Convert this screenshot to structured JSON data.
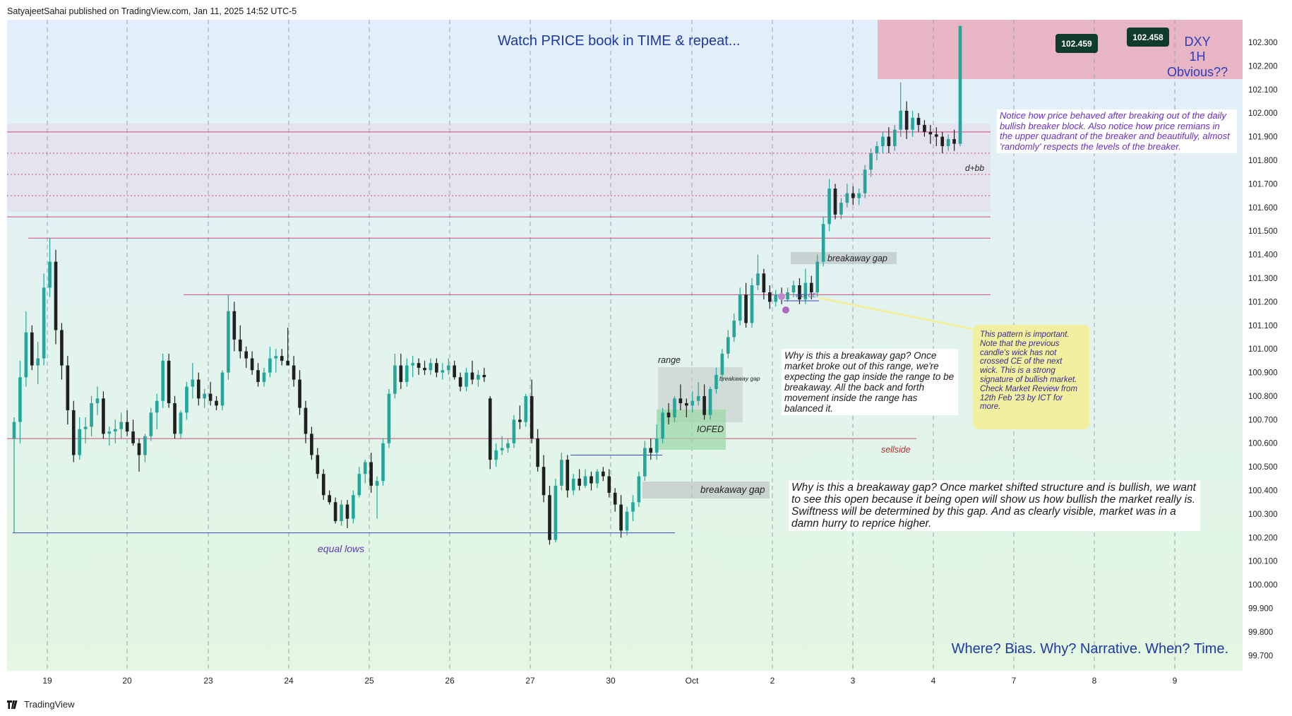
{
  "header": {
    "publisher_text": "SatyajeetSahai published on TradingView.com, Jan 11, 2025 14:52 UTC-5"
  },
  "footer": {
    "brand": "TradingView"
  },
  "colors": {
    "bull": "#26a69a",
    "bear": "#1f1f1f",
    "zone_line": "#d04a78",
    "equal_lows_line": "#3a4ab5",
    "premium_zone": "#e9a6b6",
    "note_purple": "#6a2fc2",
    "title_blue": "#1e3a9e",
    "yellow_note": "#f1f0a0"
  },
  "chart_data": {
    "type": "candlestick",
    "symbol": "DXY",
    "timeframe": "1H",
    "title": "Watch PRICE book in TIME & repeat...",
    "ylim": [
      99.65,
      102.36
    ],
    "y_ticks": [
      "102.300",
      "102.200",
      "102.100",
      "102.000",
      "101.900",
      "101.800",
      "101.700",
      "101.600",
      "101.500",
      "101.400",
      "101.300",
      "101.200",
      "101.100",
      "101.000",
      "100.900",
      "100.800",
      "100.700",
      "100.600",
      "100.500",
      "100.400",
      "100.300",
      "100.200",
      "100.100",
      "100.000",
      "99.900",
      "99.800",
      "99.700"
    ],
    "x_ticks": [
      "19",
      "20",
      "23",
      "24",
      "25",
      "26",
      "27",
      "30",
      "Oct",
      "2",
      "3",
      "4",
      "7",
      "8",
      "9"
    ],
    "price_labels": [
      "102.459",
      "102.458"
    ],
    "candles_ohlc": [
      [
        100.62,
        100.71,
        100.22,
        100.69
      ],
      [
        100.69,
        100.95,
        100.6,
        100.88
      ],
      [
        100.88,
        101.16,
        100.84,
        101.07
      ],
      [
        101.07,
        101.1,
        100.91,
        100.93
      ],
      [
        100.93,
        101.03,
        100.85,
        100.96
      ],
      [
        100.96,
        101.32,
        100.93,
        101.26
      ],
      [
        101.26,
        101.47,
        101.22,
        101.37
      ],
      [
        101.37,
        101.42,
        101.02,
        101.08
      ],
      [
        101.08,
        101.11,
        100.87,
        100.93
      ],
      [
        100.93,
        100.97,
        100.68,
        100.74
      ],
      [
        100.74,
        100.78,
        100.52,
        100.55
      ],
      [
        100.55,
        100.71,
        100.53,
        100.66
      ],
      [
        100.66,
        100.71,
        100.6,
        100.67
      ],
      [
        100.67,
        100.8,
        100.63,
        100.77
      ],
      [
        100.77,
        100.84,
        100.72,
        100.79
      ],
      [
        100.79,
        100.82,
        100.62,
        100.64
      ],
      [
        100.64,
        100.67,
        100.59,
        100.65
      ],
      [
        100.65,
        100.7,
        100.6,
        100.66
      ],
      [
        100.66,
        100.73,
        100.62,
        100.69
      ],
      [
        100.69,
        100.74,
        100.63,
        100.65
      ],
      [
        100.65,
        100.7,
        100.59,
        100.6
      ],
      [
        100.6,
        100.62,
        100.48,
        100.55
      ],
      [
        100.55,
        100.64,
        100.52,
        100.63
      ],
      [
        100.63,
        100.75,
        100.61,
        100.73
      ],
      [
        100.73,
        100.81,
        100.66,
        100.78
      ],
      [
        100.78,
        100.98,
        100.75,
        100.95
      ],
      [
        100.95,
        100.98,
        100.75,
        100.77
      ],
      [
        100.77,
        100.8,
        100.62,
        100.64
      ],
      [
        100.64,
        100.74,
        100.62,
        100.73
      ],
      [
        100.73,
        100.86,
        100.7,
        100.84
      ],
      [
        100.84,
        100.94,
        100.79,
        100.87
      ],
      [
        100.87,
        100.9,
        100.76,
        100.79
      ],
      [
        100.79,
        100.83,
        100.75,
        100.81
      ],
      [
        100.81,
        100.86,
        100.76,
        100.78
      ],
      [
        100.78,
        100.8,
        100.74,
        100.76
      ],
      [
        100.76,
        100.91,
        100.74,
        100.9
      ],
      [
        100.9,
        101.23,
        100.87,
        101.16
      ],
      [
        101.16,
        101.2,
        100.99,
        101.04
      ],
      [
        101.04,
        101.1,
        100.96,
        100.99
      ],
      [
        100.99,
        101.01,
        100.92,
        100.96
      ],
      [
        100.96,
        100.99,
        100.89,
        100.91
      ],
      [
        100.91,
        100.94,
        100.84,
        100.86
      ],
      [
        100.86,
        100.92,
        100.84,
        100.9
      ],
      [
        100.9,
        101.01,
        100.88,
        100.96
      ],
      [
        100.96,
        101.0,
        100.9,
        100.97
      ],
      [
        100.97,
        101.0,
        100.93,
        100.95
      ],
      [
        100.95,
        101.09,
        100.94,
        100.93
      ],
      [
        100.93,
        100.97,
        100.84,
        100.87
      ],
      [
        100.87,
        100.91,
        100.72,
        100.75
      ],
      [
        100.75,
        100.78,
        100.6,
        100.64
      ],
      [
        100.64,
        100.67,
        100.53,
        100.55
      ],
      [
        100.55,
        100.58,
        100.45,
        100.47
      ],
      [
        100.47,
        100.49,
        100.36,
        100.38
      ],
      [
        100.38,
        100.4,
        100.34,
        100.35
      ],
      [
        100.35,
        100.37,
        100.26,
        100.27
      ],
      [
        100.27,
        100.36,
        100.25,
        100.34
      ],
      [
        100.34,
        100.36,
        100.24,
        100.28
      ],
      [
        100.28,
        100.4,
        100.26,
        100.38
      ],
      [
        100.38,
        100.5,
        100.37,
        100.47
      ],
      [
        100.47,
        100.53,
        100.43,
        100.52
      ],
      [
        100.52,
        100.56,
        100.39,
        100.42
      ],
      [
        100.42,
        100.46,
        100.28,
        100.44
      ],
      [
        100.44,
        100.62,
        100.42,
        100.6
      ],
      [
        100.6,
        100.83,
        100.58,
        100.81
      ],
      [
        100.81,
        100.98,
        100.79,
        100.93
      ],
      [
        100.93,
        100.98,
        100.83,
        100.86
      ],
      [
        100.86,
        100.96,
        100.84,
        100.93
      ],
      [
        100.93,
        100.97,
        100.88,
        100.94
      ],
      [
        100.94,
        100.96,
        100.89,
        100.92
      ],
      [
        100.92,
        100.95,
        100.89,
        100.91
      ],
      [
        100.91,
        100.96,
        100.89,
        100.94
      ],
      [
        100.94,
        100.96,
        100.88,
        100.9
      ],
      [
        100.9,
        100.94,
        100.87,
        100.91
      ],
      [
        100.91,
        100.96,
        100.89,
        100.93
      ],
      [
        100.93,
        100.95,
        100.87,
        100.88
      ],
      [
        100.88,
        100.9,
        100.82,
        100.84
      ],
      [
        100.84,
        100.92,
        100.82,
        100.9
      ],
      [
        100.9,
        100.95,
        100.85,
        100.87
      ],
      [
        100.87,
        100.91,
        100.84,
        100.89
      ],
      [
        100.89,
        100.92,
        100.86,
        100.88
      ],
      [
        100.79,
        100.8,
        100.49,
        100.53
      ],
      [
        100.53,
        100.6,
        100.5,
        100.57
      ],
      [
        100.57,
        100.63,
        100.55,
        100.58
      ],
      [
        100.58,
        100.62,
        100.56,
        100.6
      ],
      [
        100.6,
        100.72,
        100.58,
        100.7
      ],
      [
        100.7,
        100.76,
        100.66,
        100.69
      ],
      [
        100.69,
        100.81,
        100.67,
        100.8
      ],
      [
        100.8,
        100.87,
        100.6,
        100.62
      ],
      [
        100.62,
        100.66,
        100.48,
        100.5
      ],
      [
        100.5,
        100.55,
        100.35,
        100.38
      ],
      [
        100.38,
        100.42,
        100.17,
        100.19
      ],
      [
        100.19,
        100.45,
        100.18,
        100.42
      ],
      [
        100.42,
        100.56,
        100.4,
        100.53
      ],
      [
        100.53,
        100.55,
        100.37,
        100.4
      ],
      [
        100.4,
        100.47,
        100.38,
        100.45
      ],
      [
        100.45,
        100.49,
        100.4,
        100.42
      ],
      [
        100.42,
        100.49,
        100.41,
        100.46
      ],
      [
        100.46,
        100.48,
        100.4,
        100.43
      ],
      [
        100.43,
        100.49,
        100.41,
        100.48
      ],
      [
        100.48,
        100.5,
        100.44,
        100.46
      ],
      [
        100.46,
        100.49,
        100.37,
        100.39
      ],
      [
        100.39,
        100.41,
        100.31,
        100.34
      ],
      [
        100.34,
        100.38,
        100.2,
        100.23
      ],
      [
        100.23,
        100.33,
        100.21,
        100.31
      ],
      [
        100.31,
        100.38,
        100.27,
        100.35
      ],
      [
        100.35,
        100.48,
        100.33,
        100.46
      ],
      [
        100.46,
        100.61,
        100.44,
        100.58
      ],
      [
        100.58,
        100.62,
        100.53,
        100.56
      ],
      [
        100.56,
        100.68,
        100.53,
        100.62
      ],
      [
        100.62,
        100.75,
        100.6,
        100.73
      ],
      [
        100.73,
        100.77,
        100.68,
        100.71
      ],
      [
        100.71,
        100.8,
        100.69,
        100.79
      ],
      [
        100.79,
        100.85,
        100.74,
        100.77
      ],
      [
        100.77,
        100.79,
        100.71,
        100.76
      ],
      [
        100.76,
        100.82,
        100.73,
        100.78
      ],
      [
        100.78,
        100.86,
        100.76,
        100.8
      ],
      [
        100.8,
        100.85,
        100.7,
        100.72
      ],
      [
        100.72,
        100.84,
        100.7,
        100.83
      ],
      [
        100.83,
        100.92,
        100.81,
        100.89
      ],
      [
        100.89,
        101.0,
        100.86,
        100.98
      ],
      [
        100.98,
        101.08,
        100.96,
        101.05
      ],
      [
        101.05,
        101.15,
        101.03,
        101.12
      ],
      [
        101.12,
        101.26,
        101.1,
        101.23
      ],
      [
        101.23,
        101.28,
        101.09,
        101.11
      ],
      [
        101.11,
        101.3,
        101.09,
        101.27
      ],
      [
        101.27,
        101.4,
        101.25,
        101.32
      ],
      [
        101.32,
        101.34,
        101.21,
        101.24
      ],
      [
        101.24,
        101.27,
        101.17,
        101.2
      ],
      [
        101.2,
        101.25,
        101.18,
        101.23
      ],
      [
        101.23,
        101.26,
        101.19,
        101.21
      ],
      [
        101.21,
        101.26,
        101.2,
        101.24
      ],
      [
        101.24,
        101.29,
        101.22,
        101.27
      ],
      [
        101.27,
        101.3,
        101.19,
        101.21
      ],
      [
        101.21,
        101.34,
        101.19,
        101.28
      ],
      [
        101.28,
        101.31,
        101.21,
        101.24
      ],
      [
        101.24,
        101.4,
        101.22,
        101.37
      ],
      [
        101.37,
        101.56,
        101.35,
        101.53
      ],
      [
        101.53,
        101.72,
        101.5,
        101.68
      ],
      [
        101.68,
        101.7,
        101.55,
        101.57
      ],
      [
        101.57,
        101.64,
        101.55,
        101.62
      ],
      [
        101.62,
        101.7,
        101.6,
        101.66
      ],
      [
        101.66,
        101.69,
        101.61,
        101.64
      ],
      [
        101.64,
        101.68,
        101.61,
        101.66
      ],
      [
        101.66,
        101.78,
        101.64,
        101.76
      ],
      [
        101.76,
        101.85,
        101.73,
        101.83
      ],
      [
        101.83,
        101.88,
        101.8,
        101.86
      ],
      [
        101.86,
        101.92,
        101.83,
        101.9
      ],
      [
        101.9,
        101.94,
        101.83,
        101.86
      ],
      [
        101.86,
        101.95,
        101.84,
        101.93
      ],
      [
        101.93,
        102.13,
        101.9,
        102.01
      ],
      [
        102.01,
        102.05,
        101.89,
        101.93
      ],
      [
        101.93,
        102.01,
        101.9,
        101.98
      ],
      [
        101.98,
        102.0,
        101.92,
        101.95
      ],
      [
        101.95,
        101.97,
        101.9,
        101.92
      ],
      [
        101.92,
        101.95,
        101.87,
        101.91
      ],
      [
        101.91,
        101.94,
        101.86,
        101.9
      ],
      [
        101.9,
        101.92,
        101.83,
        101.86
      ],
      [
        101.86,
        101.91,
        101.84,
        101.89
      ],
      [
        101.89,
        101.93,
        101.84,
        101.87
      ],
      [
        101.87,
        102.37,
        101.86,
        102.37
      ]
    ],
    "levels": [
      {
        "name": "breaker_top",
        "price": 101.92
      },
      {
        "name": "breaker_q1",
        "price": 101.83
      },
      {
        "name": "breaker_mid",
        "price": 101.74
      },
      {
        "name": "breaker_q3",
        "price": 101.65
      },
      {
        "name": "breaker_bottom",
        "price": 101.56
      },
      {
        "name": "upper_high",
        "price": 101.47
      },
      {
        "name": "mid_high",
        "price": 101.23
      },
      {
        "name": "sellside",
        "price": 100.62
      },
      {
        "name": "equal_lows",
        "price": 100.22
      },
      {
        "name": "iofed_high",
        "price": 100.55
      }
    ],
    "premium_zone": [
      102.1,
      102.36
    ]
  },
  "annotations": {
    "title_main": "Watch PRICE book in TIME & repeat...",
    "dxy_label": "DXY",
    "tf_label": "1H",
    "obvious": "Obvious??",
    "notice_note": "Notice how price behaved after breaking out of the daily bullish breaker block. Also notice how price remians in the upper quadrant of the breaker and beautifully, almost 'randomly' respects the levels of the breaker.",
    "dbb": "d+bb",
    "breakaway_gap_upper": "breakaway gap",
    "wick_ce": "wick CE",
    "yellow_note": "This pattern is important. Note that the previous candle's wick has not crossed CE of the next wick. This is a strong signature of bullish market. Check Market Review from 12th Feb '23 by ICT for more.",
    "range_label": "range",
    "small_breakaway": "breakaway gap",
    "iofed_label": "IOFED",
    "range_note": "Why is this a breakaway gap? Once market broke out of this range, we're expecting the gap inside the range to be breakaway. All the back and forth movement inside the range has balanced it.",
    "sellside": "sellside",
    "breakaway_gap_lower": "breakaway gap",
    "lower_note": "Why is this a breakaway gap? Once market shifted structure and is bullish, we want to see this open because it being open will show us how bullish the market really is. Swiftness will be determined by this gap. And as clearly visible, market was in a damn hurry to reprice higher.",
    "equal_lows": "equal lows",
    "bottom_tagline": "Where? Bias. Why? Narrative. When? Time."
  }
}
